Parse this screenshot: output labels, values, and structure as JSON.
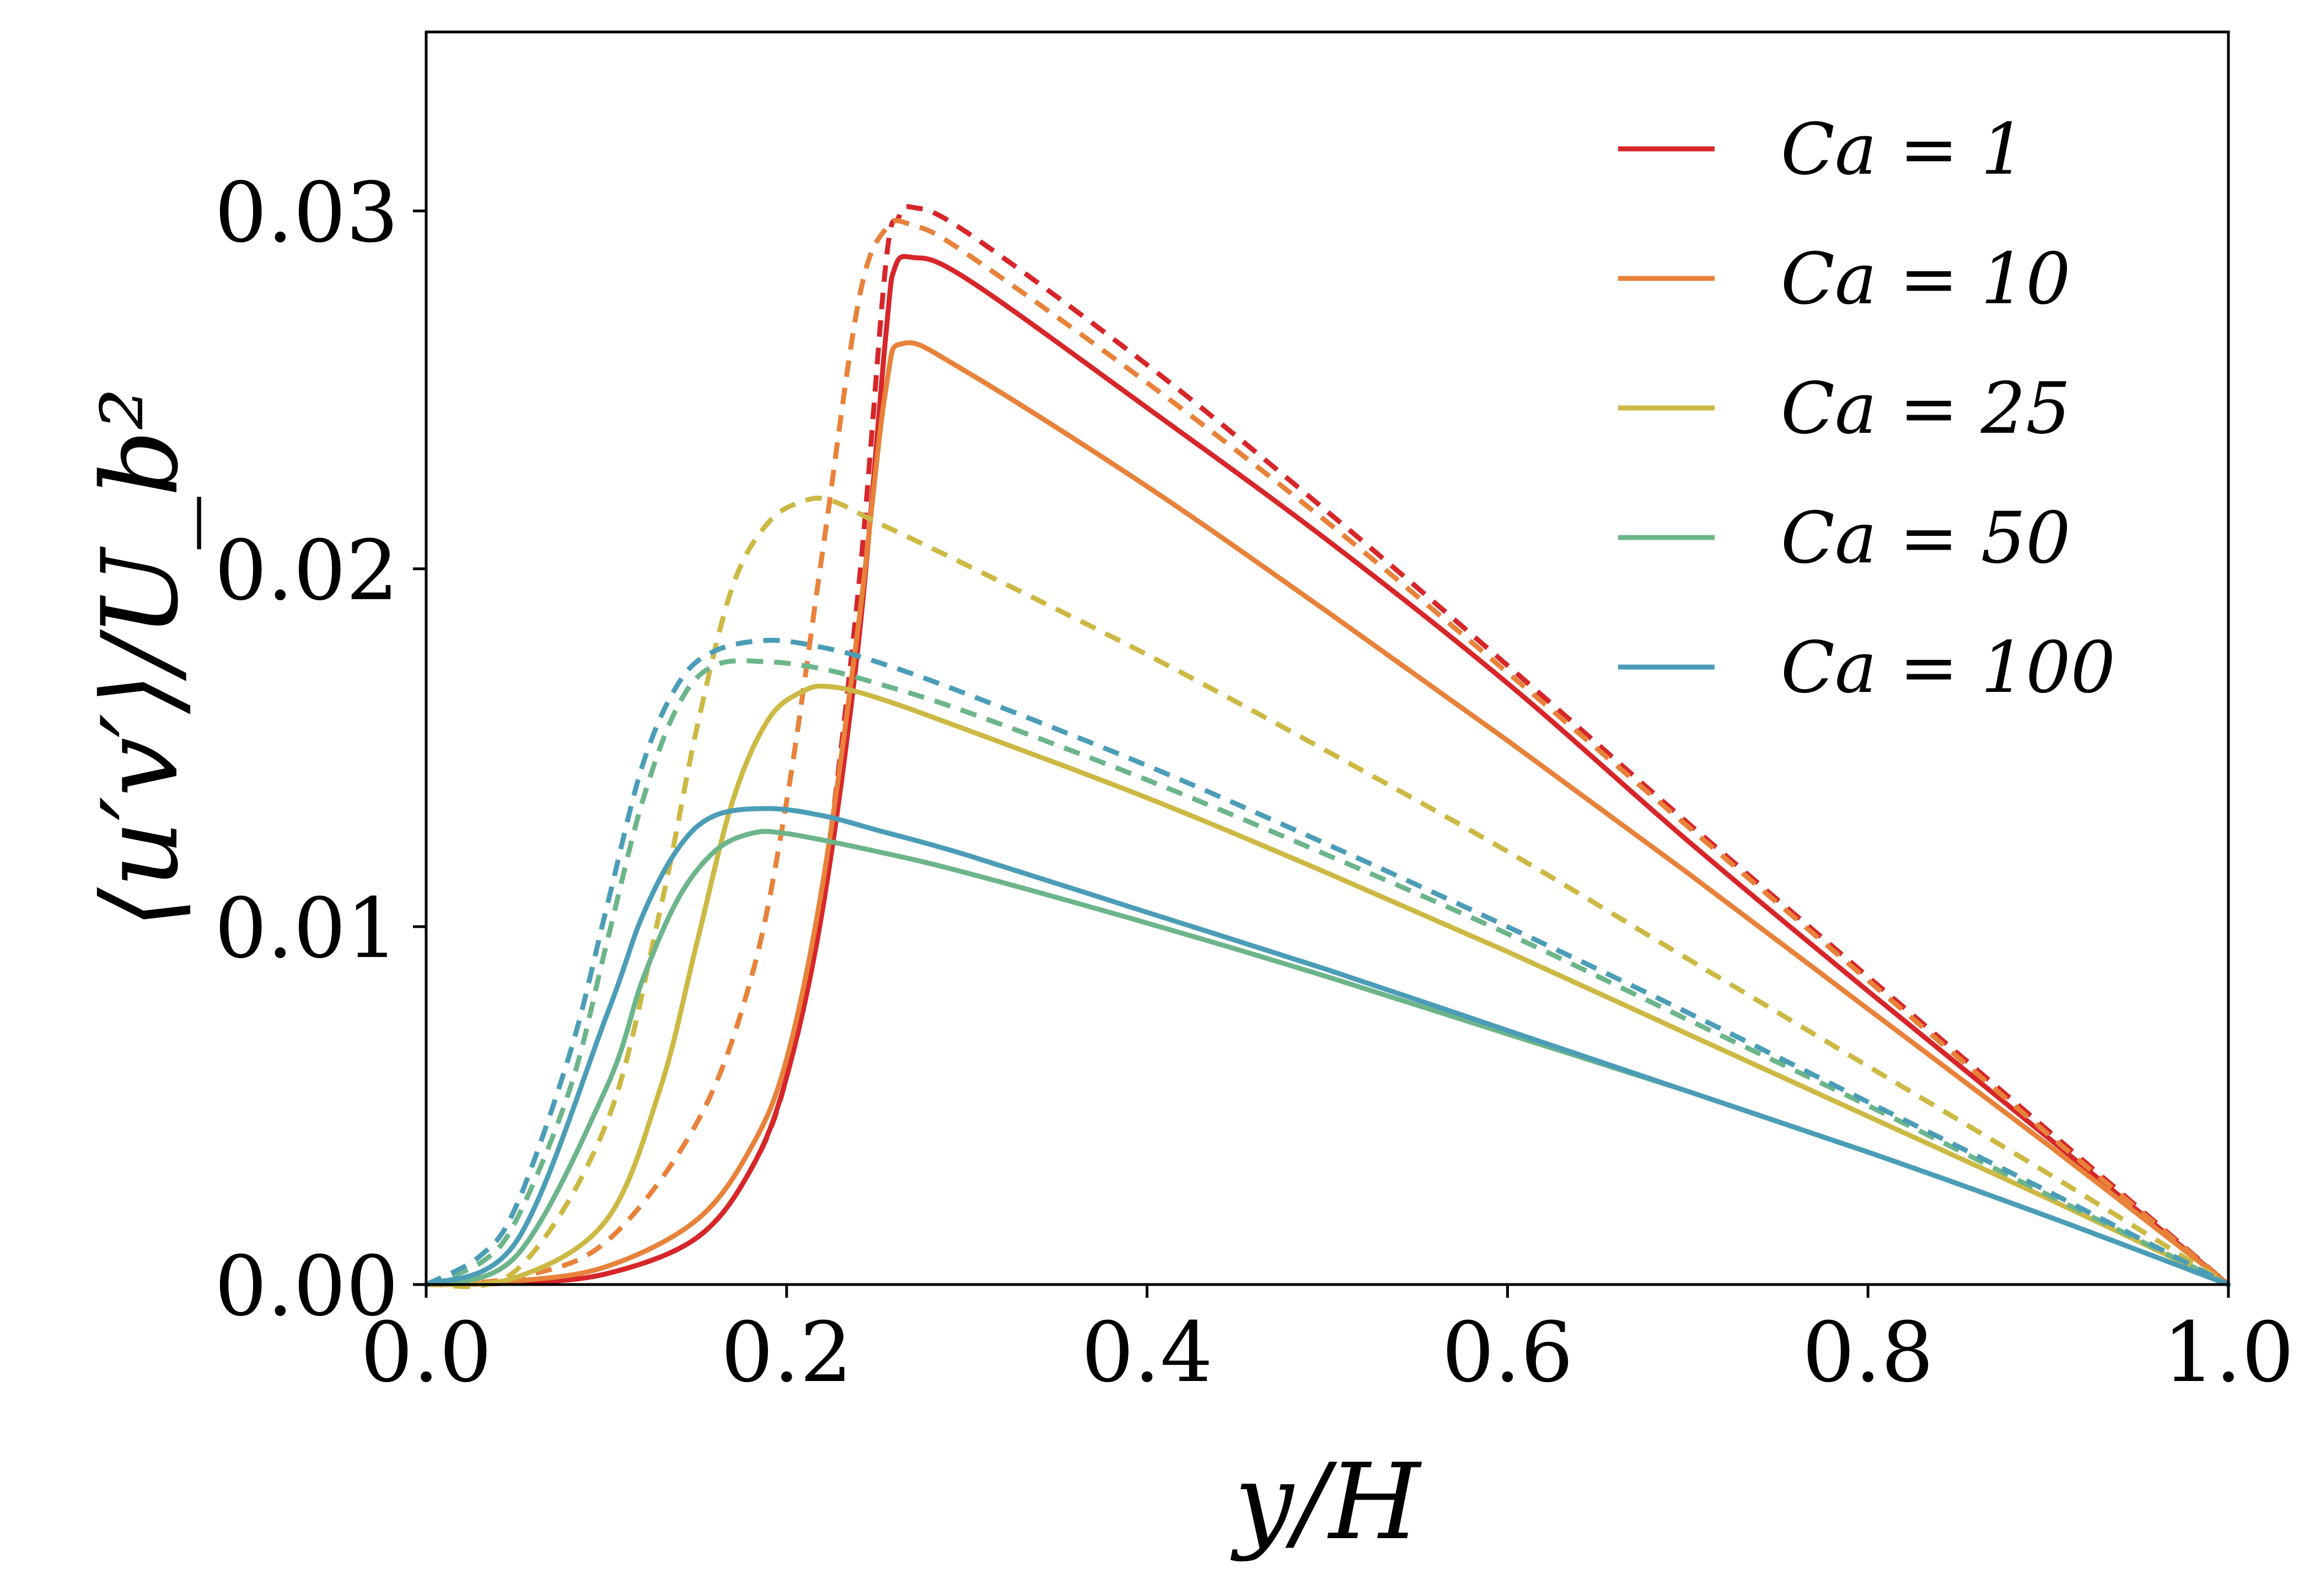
{
  "chart_data": {
    "type": "line",
    "xlabel": "y/H",
    "ylabel": "⟨u′v′⟩/U_b²",
    "xlim": [
      0.0,
      1.0
    ],
    "ylim": [
      0.0,
      0.035
    ],
    "x_ticks": [
      "0.0",
      "0.2",
      "0.4",
      "0.6",
      "0.8",
      "1.0"
    ],
    "y_ticks": [
      "0.00",
      "0.01",
      "0.02",
      "0.03"
    ],
    "grid": false,
    "legend_position": "top-right",
    "legend_note": "solid and dashed curves share each Ca color",
    "series": [
      {
        "name": "Ca = 1",
        "color": "#d7262a",
        "solid": [
          [
            0.0,
            0.0
          ],
          [
            0.05,
            5e-05
          ],
          [
            0.1,
            0.0003
          ],
          [
            0.15,
            0.0013
          ],
          [
            0.18,
            0.0032
          ],
          [
            0.2,
            0.0058
          ],
          [
            0.22,
            0.0105
          ],
          [
            0.24,
            0.018
          ],
          [
            0.255,
            0.0265
          ],
          [
            0.26,
            0.0284
          ],
          [
            0.27,
            0.0287
          ],
          [
            0.3,
            0.0281
          ],
          [
            0.4,
            0.0245
          ],
          [
            0.5,
            0.0208
          ],
          [
            0.6,
            0.0168
          ],
          [
            0.7,
            0.0124
          ],
          [
            0.8,
            0.0082
          ],
          [
            0.9,
            0.0041
          ],
          [
            1.0,
            0.0
          ]
        ],
        "dashed": [
          [
            0.0,
            0.0
          ],
          [
            0.05,
            5e-05
          ],
          [
            0.1,
            0.0003
          ],
          [
            0.15,
            0.0013
          ],
          [
            0.18,
            0.0032
          ],
          [
            0.2,
            0.0058
          ],
          [
            0.22,
            0.011
          ],
          [
            0.24,
            0.0195
          ],
          [
            0.255,
            0.0285
          ],
          [
            0.262,
            0.0298
          ],
          [
            0.27,
            0.0301
          ],
          [
            0.3,
            0.0294
          ],
          [
            0.4,
            0.0257
          ],
          [
            0.5,
            0.0216
          ],
          [
            0.6,
            0.0173
          ],
          [
            0.7,
            0.0129
          ],
          [
            0.8,
            0.0086
          ],
          [
            0.9,
            0.0043
          ],
          [
            1.0,
            0.0
          ]
        ]
      },
      {
        "name": "Ca = 10",
        "color": "#e8823a",
        "solid": [
          [
            0.0,
            0.0
          ],
          [
            0.05,
            0.0001
          ],
          [
            0.1,
            0.0005
          ],
          [
            0.15,
            0.0018
          ],
          [
            0.18,
            0.0038
          ],
          [
            0.2,
            0.0063
          ],
          [
            0.22,
            0.0112
          ],
          [
            0.24,
            0.0185
          ],
          [
            0.255,
            0.025
          ],
          [
            0.265,
            0.0263
          ],
          [
            0.3,
            0.0255
          ],
          [
            0.4,
            0.0223
          ],
          [
            0.5,
            0.0188
          ],
          [
            0.6,
            0.0152
          ],
          [
            0.7,
            0.0115
          ],
          [
            0.8,
            0.0077
          ],
          [
            0.9,
            0.0039
          ],
          [
            1.0,
            0.0
          ]
        ],
        "dashed": [
          [
            0.0,
            0.0
          ],
          [
            0.05,
            0.0002
          ],
          [
            0.1,
            0.0012
          ],
          [
            0.15,
            0.0045
          ],
          [
            0.18,
            0.0085
          ],
          [
            0.2,
            0.0135
          ],
          [
            0.22,
            0.0205
          ],
          [
            0.24,
            0.0275
          ],
          [
            0.255,
            0.0295
          ],
          [
            0.27,
            0.0296
          ],
          [
            0.3,
            0.0288
          ],
          [
            0.4,
            0.0252
          ],
          [
            0.5,
            0.0213
          ],
          [
            0.6,
            0.0171
          ],
          [
            0.7,
            0.0128
          ],
          [
            0.8,
            0.0085
          ],
          [
            0.9,
            0.0042
          ],
          [
            1.0,
            0.0
          ]
        ]
      },
      {
        "name": "Ca = 25",
        "color": "#ccb944",
        "solid": [
          [
            0.0,
            0.0
          ],
          [
            0.05,
            0.0002
          ],
          [
            0.1,
            0.0018
          ],
          [
            0.13,
            0.0055
          ],
          [
            0.15,
            0.0095
          ],
          [
            0.17,
            0.0135
          ],
          [
            0.19,
            0.0158
          ],
          [
            0.21,
            0.0166
          ],
          [
            0.225,
            0.0167
          ],
          [
            0.25,
            0.0164
          ],
          [
            0.3,
            0.0155
          ],
          [
            0.4,
            0.0136
          ],
          [
            0.5,
            0.0115
          ],
          [
            0.6,
            0.0093
          ],
          [
            0.7,
            0.007
          ],
          [
            0.8,
            0.0047
          ],
          [
            0.9,
            0.0024
          ],
          [
            1.0,
            0.0
          ]
        ],
        "dashed": [
          [
            0.0,
            0.0
          ],
          [
            0.05,
            0.0004
          ],
          [
            0.1,
            0.0045
          ],
          [
            0.13,
            0.0105
          ],
          [
            0.15,
            0.0155
          ],
          [
            0.17,
            0.0195
          ],
          [
            0.19,
            0.0213
          ],
          [
            0.21,
            0.0219
          ],
          [
            0.225,
            0.0219
          ],
          [
            0.25,
            0.0213
          ],
          [
            0.3,
            0.0201
          ],
          [
            0.4,
            0.0176
          ],
          [
            0.5,
            0.0149
          ],
          [
            0.6,
            0.0121
          ],
          [
            0.7,
            0.0091
          ],
          [
            0.8,
            0.0061
          ],
          [
            0.9,
            0.0031
          ],
          [
            1.0,
            0.0
          ]
        ]
      },
      {
        "name": "Ca = 50",
        "color": "#6cb58a",
        "solid": [
          [
            0.0,
            0.0
          ],
          [
            0.05,
            0.0008
          ],
          [
            0.1,
            0.0055
          ],
          [
            0.12,
            0.0085
          ],
          [
            0.14,
            0.0108
          ],
          [
            0.16,
            0.0121
          ],
          [
            0.18,
            0.0126
          ],
          [
            0.2,
            0.0126
          ],
          [
            0.25,
            0.0121
          ],
          [
            0.3,
            0.0115
          ],
          [
            0.4,
            0.0101
          ],
          [
            0.5,
            0.0086
          ],
          [
            0.6,
            0.007
          ],
          [
            0.7,
            0.0054
          ],
          [
            0.8,
            0.0037
          ],
          [
            0.9,
            0.0019
          ],
          [
            1.0,
            0.0
          ]
        ],
        "dashed": [
          [
            0.0,
            0.0
          ],
          [
            0.03,
            0.0006
          ],
          [
            0.05,
            0.0018
          ],
          [
            0.08,
            0.0055
          ],
          [
            0.1,
            0.0095
          ],
          [
            0.12,
            0.0135
          ],
          [
            0.14,
            0.0162
          ],
          [
            0.16,
            0.0173
          ],
          [
            0.19,
            0.0174
          ],
          [
            0.22,
            0.0172
          ],
          [
            0.25,
            0.0168
          ],
          [
            0.3,
            0.016
          ],
          [
            0.4,
            0.0141
          ],
          [
            0.5,
            0.012
          ],
          [
            0.6,
            0.0098
          ],
          [
            0.7,
            0.0074
          ],
          [
            0.8,
            0.005
          ],
          [
            0.9,
            0.0025
          ],
          [
            1.0,
            0.0
          ]
        ]
      },
      {
        "name": "Ca = 100",
        "color": "#4b9db7",
        "solid": [
          [
            0.0,
            0.0
          ],
          [
            0.05,
            0.0012
          ],
          [
            0.1,
            0.0075
          ],
          [
            0.12,
            0.0103
          ],
          [
            0.14,
            0.0122
          ],
          [
            0.16,
            0.0131
          ],
          [
            0.19,
            0.0133
          ],
          [
            0.22,
            0.0131
          ],
          [
            0.25,
            0.0127
          ],
          [
            0.3,
            0.012
          ],
          [
            0.4,
            0.0104
          ],
          [
            0.5,
            0.0088
          ],
          [
            0.6,
            0.0071
          ],
          [
            0.7,
            0.0054
          ],
          [
            0.8,
            0.0037
          ],
          [
            0.9,
            0.0019
          ],
          [
            1.0,
            0.0
          ]
        ],
        "dashed": [
          [
            0.0,
            0.0
          ],
          [
            0.03,
            0.0008
          ],
          [
            0.05,
            0.0022
          ],
          [
            0.08,
            0.0065
          ],
          [
            0.1,
            0.0105
          ],
          [
            0.12,
            0.0145
          ],
          [
            0.14,
            0.0168
          ],
          [
            0.16,
            0.0177
          ],
          [
            0.19,
            0.018
          ],
          [
            0.22,
            0.0178
          ],
          [
            0.25,
            0.0174
          ],
          [
            0.3,
            0.0165
          ],
          [
            0.4,
            0.0145
          ],
          [
            0.5,
            0.0123
          ],
          [
            0.6,
            0.01
          ],
          [
            0.7,
            0.0076
          ],
          [
            0.8,
            0.0051
          ],
          [
            0.9,
            0.0026
          ],
          [
            1.0,
            0.0
          ]
        ]
      }
    ]
  }
}
